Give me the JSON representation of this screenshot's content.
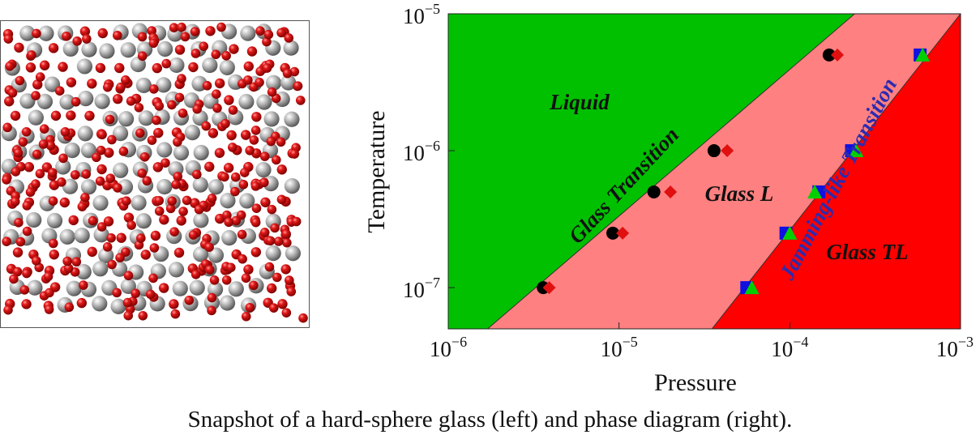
{
  "caption": "Snapshot of a hard-sphere glass (left) and phase diagram (right).",
  "snapshot": {
    "large_sphere_color": "#9a9a9a",
    "small_sphere_color": "#d01010"
  },
  "colors": {
    "liquid": "#00c000",
    "glass_l": "#ff8080",
    "glass_tl": "#ff0000",
    "circle_marker": "#000000",
    "diamond_marker": "#e01010",
    "square_marker": "#1010e0",
    "triangle_marker": "#00d000",
    "jamming_label": "#2b2bb0"
  },
  "chart_data": {
    "type": "scatter",
    "x_scale": "log",
    "y_scale": "log",
    "xlabel": "Pressure",
    "ylabel": "Temperature",
    "xlim": [
      1e-06,
      0.001
    ],
    "ylim": [
      5e-08,
      1e-05
    ],
    "x_ticks": [
      {
        "value": 1e-06,
        "label": "10",
        "exp": "−6"
      },
      {
        "value": 1e-05,
        "label": "10",
        "exp": "−5"
      },
      {
        "value": 0.0001,
        "label": "10",
        "exp": "−4"
      },
      {
        "value": 0.001,
        "label": "10",
        "exp": "−3"
      }
    ],
    "y_ticks": [
      {
        "value": 1e-07,
        "label": "10",
        "exp": "−7"
      },
      {
        "value": 1e-06,
        "label": "10",
        "exp": "−6"
      },
      {
        "value": 1e-05,
        "label": "10",
        "exp": "−5"
      }
    ],
    "region_labels": {
      "liquid": "Liquid",
      "glass_l": "Glass L",
      "glass_tl": "Glass TL",
      "glass_transition": "Glass Transition",
      "jamming_transition": "Jamming-like Transition"
    },
    "glass_transition_line": [
      [
        1.7e-06,
        5e-08
      ],
      [
        0.00024,
        1e-05
      ]
    ],
    "jamming_transition_line": [
      [
        3.5e-05,
        5e-08
      ],
      [
        0.001,
        1e-05
      ]
    ],
    "series": [
      {
        "marker": "circle",
        "color": "#000000",
        "points": [
          [
            3.6e-06,
            1e-07
          ],
          [
            9.2e-06,
            2.5e-07
          ],
          [
            1.6e-05,
            5e-07
          ],
          [
            3.6e-05,
            1e-06
          ],
          [
            0.00017,
            5e-06
          ]
        ]
      },
      {
        "marker": "diamond",
        "color": "#e01010",
        "points": [
          [
            3.9e-06,
            1e-07
          ],
          [
            1.05e-05,
            2.5e-07
          ],
          [
            2e-05,
            5e-07
          ],
          [
            4.3e-05,
            1e-06
          ],
          [
            0.00019,
            5e-06
          ]
        ]
      },
      {
        "marker": "square",
        "color": "#1010e0",
        "points": [
          [
            5.6e-05,
            1e-07
          ],
          [
            9.5e-05,
            2.5e-07
          ],
          [
            0.000148,
            5e-07
          ],
          [
            0.00023,
            1e-06
          ],
          [
            0.00058,
            5e-06
          ]
        ]
      },
      {
        "marker": "triangle",
        "color": "#00d000",
        "points": [
          [
            6e-05,
            1e-07
          ],
          [
            0.0001,
            2.5e-07
          ],
          [
            0.00014,
            5e-07
          ],
          [
            0.000245,
            1e-06
          ],
          [
            0.0006,
            5e-06
          ]
        ]
      }
    ]
  }
}
